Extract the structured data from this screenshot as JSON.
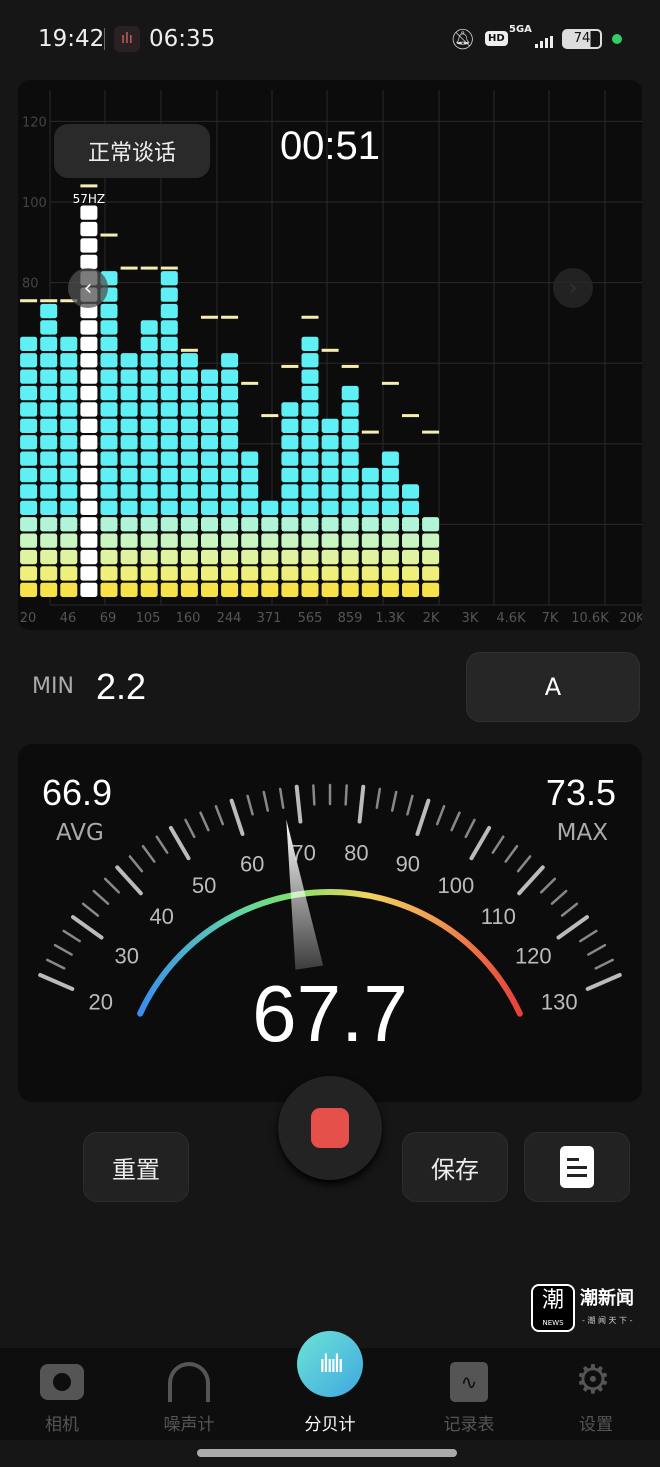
{
  "status_bar": {
    "time": "19:42",
    "alarm_time": "06:35",
    "network": "5GA",
    "hd": "HD",
    "battery": "74"
  },
  "spectrum": {
    "mode_label": "正常谈话",
    "timer": "00:51",
    "highlight_label": "57HZ",
    "y_ticks": [
      "120",
      "100",
      "80"
    ],
    "x_ticks": [
      "20",
      "46",
      "69",
      "105",
      "160",
      "244",
      "371",
      "565",
      "859",
      "1.3K",
      "2K",
      "3K",
      "4.6K",
      "7K",
      "10.6K",
      "20K"
    ],
    "segments": [
      16,
      18,
      16,
      24,
      20,
      15,
      17,
      20,
      15,
      14,
      15,
      9,
      6,
      12,
      16,
      11,
      13,
      8,
      9,
      7,
      5
    ],
    "peaks_db": [
      75.5,
      75.5,
      75.5,
      104,
      91.8,
      83.6,
      83.6,
      83.6,
      63.2,
      71.4,
      71.4,
      55,
      47,
      59.2,
      71.4,
      63.2,
      59.2,
      42.9,
      55,
      47,
      42.9
    ],
    "highlight_index": 3,
    "colors": {
      "bar": "#5ef0f5",
      "base": "#f7e24a",
      "peak": "#f5eeb0",
      "highlight": "#ffffff"
    }
  },
  "stats": {
    "min_label": "MIN",
    "min": "2.2",
    "weighting": "A",
    "avg": "66.9",
    "avg_label": "AVG",
    "max": "73.5",
    "max_label": "MAX"
  },
  "gauge": {
    "value": 67.7,
    "value_text": "67.7",
    "min": 20,
    "max": 130,
    "labels": [
      "20",
      "30",
      "40",
      "50",
      "60",
      "70",
      "80",
      "90",
      "100",
      "110",
      "120",
      "130"
    ]
  },
  "actions": {
    "reset": "重置",
    "save": "保存",
    "record_color": "#e5504a"
  },
  "nav": [
    {
      "label": "相机",
      "icon": "camera-icon"
    },
    {
      "label": "噪声计",
      "icon": "headphones-icon"
    },
    {
      "label": "分贝计",
      "icon": "waveform-icon",
      "active": true
    },
    {
      "label": "记录表",
      "icon": "chart-record-icon"
    },
    {
      "label": "设置",
      "icon": "gear-icon"
    }
  ],
  "watermark": {
    "name": "潮新闻",
    "slogan": "- 潮 闻 天 下 -",
    "logo_text": "潮",
    "logo_sub": "NEWS"
  }
}
